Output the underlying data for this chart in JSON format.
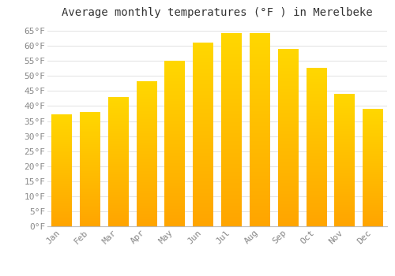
{
  "title": "Average monthly temperatures (°F ) in Merelbeke",
  "months": [
    "Jan",
    "Feb",
    "Mar",
    "Apr",
    "May",
    "Jun",
    "Jul",
    "Aug",
    "Sep",
    "Oct",
    "Nov",
    "Dec"
  ],
  "values": [
    37.0,
    38.0,
    43.0,
    48.0,
    55.0,
    61.0,
    64.0,
    64.0,
    59.0,
    52.5,
    44.0,
    39.0
  ],
  "bar_color_top": "#FFD700",
  "bar_color_bottom": "#FFA500",
  "background_color": "#FFFFFF",
  "grid_color": "#DDDDDD",
  "text_color": "#888888",
  "ylim": [
    0,
    67
  ],
  "ytick_step": 5,
  "title_fontsize": 10,
  "tick_fontsize": 8,
  "bar_width": 0.72
}
